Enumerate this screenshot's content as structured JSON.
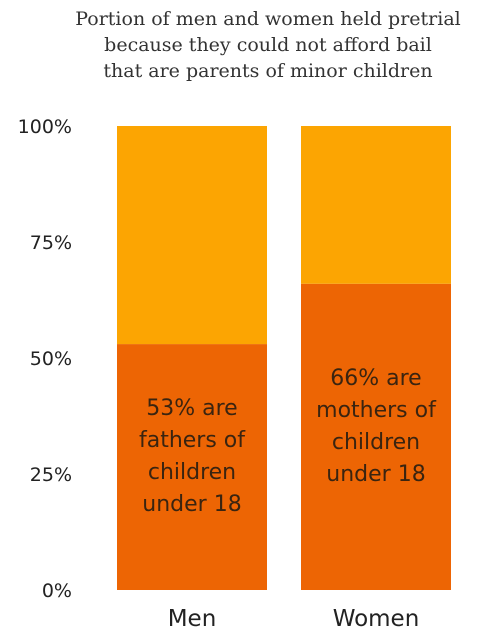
{
  "chart_data": {
    "type": "bar",
    "stacked": true,
    "title_lines": [
      "Portion of men and women held pretrial",
      "because they could not afford bail",
      "that are parents of minor children"
    ],
    "categories": [
      "Men",
      "Women"
    ],
    "series": [
      {
        "values": [
          53,
          66
        ],
        "color": "#ed6504"
      },
      {
        "values": [
          47,
          34
        ],
        "color": "#fca502"
      }
    ],
    "data_labels": [
      [
        "53% are",
        "fathers of",
        "children",
        "under 18"
      ],
      [
        "66% are",
        "mothers of",
        "children",
        "under 18"
      ]
    ],
    "yticks": [
      "0%",
      "25%",
      "50%",
      "75%",
      "100%"
    ],
    "ylim": [
      0,
      100
    ],
    "xlabel": "",
    "ylabel": "",
    "grid": false,
    "legend": "none"
  }
}
